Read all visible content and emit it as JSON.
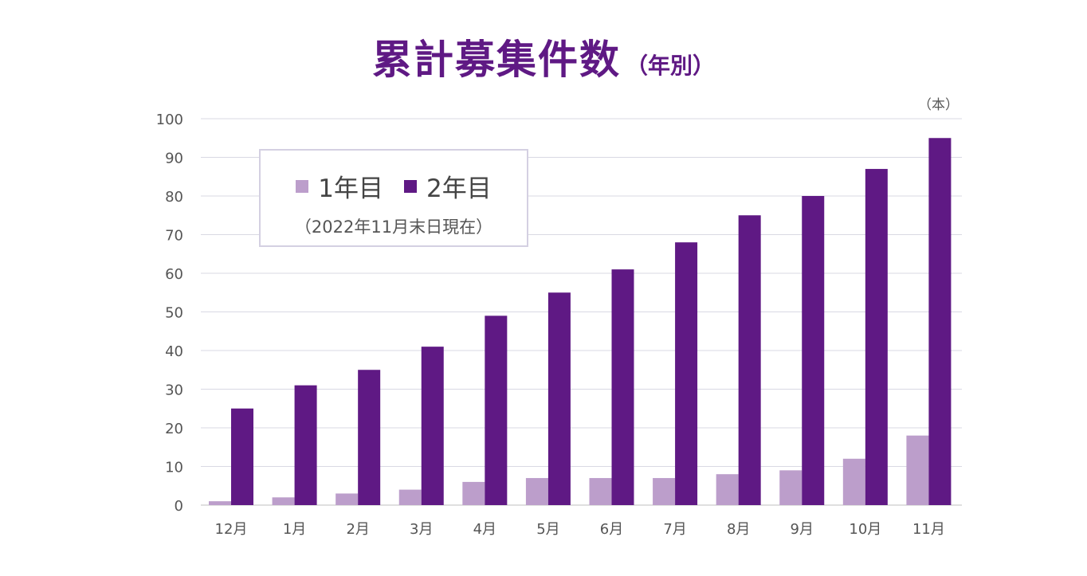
{
  "chart_data": {
    "type": "bar",
    "title": "累計募集件数",
    "subtitle": "（年別）",
    "unit": "（本）",
    "note": "（2022年11月末日現在）",
    "categories": [
      "12月",
      "1月",
      "2月",
      "3月",
      "4月",
      "5月",
      "6月",
      "7月",
      "8月",
      "9月",
      "10月",
      "11月"
    ],
    "series": [
      {
        "name": "1年目",
        "color": "#bc9ecb",
        "values": [
          1,
          2,
          3,
          4,
          6,
          7,
          7,
          7,
          8,
          9,
          12,
          18
        ]
      },
      {
        "name": "2年目",
        "color": "#5f1984",
        "values": [
          25,
          31,
          35,
          41,
          49,
          55,
          61,
          68,
          75,
          80,
          87,
          95
        ]
      }
    ],
    "ylim": [
      0,
      100
    ],
    "yticks": [
      0,
      10,
      20,
      30,
      40,
      50,
      60,
      70,
      80,
      90,
      100
    ],
    "grid": true,
    "legend_position": "top-left",
    "xlabel": "",
    "ylabel": ""
  }
}
